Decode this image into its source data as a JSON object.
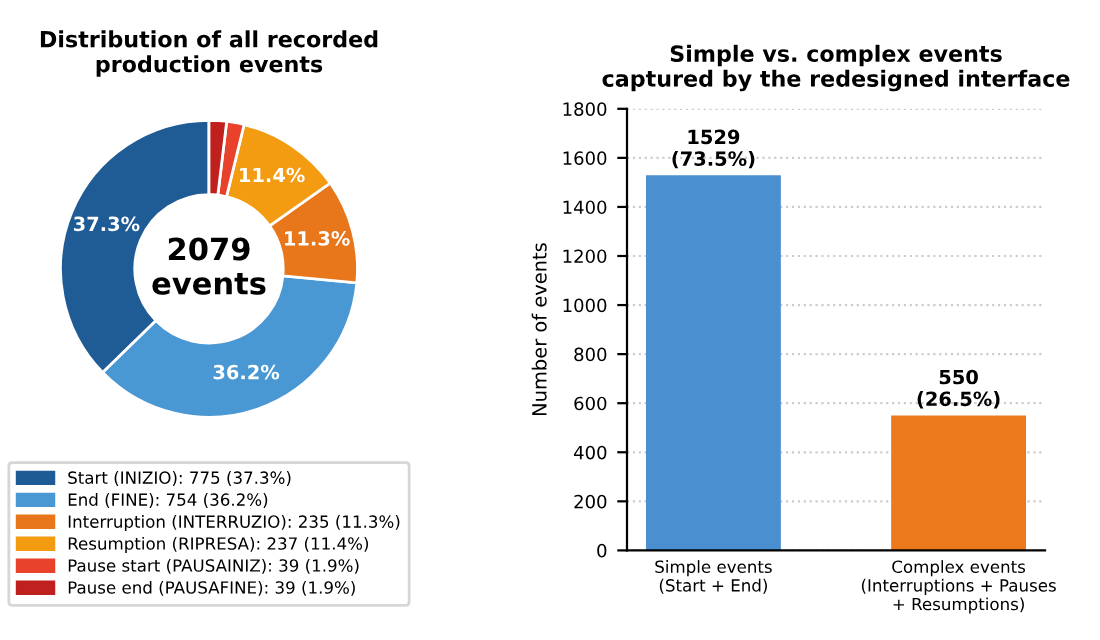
{
  "chart_data": [
    {
      "type": "donut",
      "title": "Distribution of all recorded\nproduction events",
      "categories": [
        "Start (INIZIO): 775 (37.3%)",
        "End (FINE): 754 (36.2%)",
        "Interruption (INTERRUZIO): 235 (11.3%)",
        "Resumption (RIPRESA): 237 (11.4%)",
        "Pause start (PAUSAINIZ): 39 (1.9%)",
        "Pause end (PAUSAFINE): 39 (1.9%)"
      ],
      "values": [
        37.3,
        36.2,
        11.3,
        11.4,
        1.9,
        1.9
      ],
      "value_labels": [
        "37.3%",
        "36.2%",
        "11.3%",
        "11.4%",
        null,
        null
      ],
      "colors": [
        "#1f5b95",
        "#4a98d3",
        "#e8761a",
        "#f39c12",
        "#e8412c",
        "#c0201e"
      ],
      "annotations": [
        "2079\nevents"
      ],
      "legend": "bottom"
    },
    {
      "type": "bar",
      "title": "Simple vs. complex events\ncaptured by the redesigned interface",
      "categories": [
        "Simple events\n(Start + End)",
        "Complex events\n(Interruptions + Pauses\n+ Resumptions)"
      ],
      "values": [
        1529,
        550
      ],
      "colors": [
        "#4a8fd0",
        "#ec7a1c"
      ],
      "value_labels": [
        "1529\n(73.5%)",
        "550\n(26.5%)"
      ],
      "ylabel": "Number of events",
      "ylim": [
        0,
        1800
      ],
      "yticks": [
        0,
        200,
        400,
        600,
        800,
        1000,
        1200,
        1400,
        1600,
        1800
      ],
      "grid": "y"
    }
  ]
}
